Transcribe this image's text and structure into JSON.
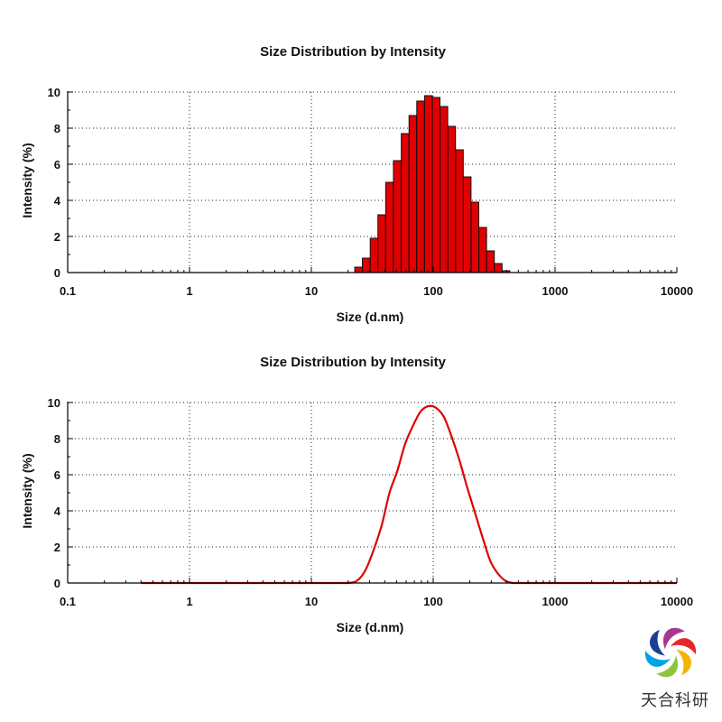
{
  "chart_data": [
    {
      "type": "bar",
      "title": "Size Distribution by Intensity",
      "xlabel": "Size (d.nm)",
      "ylabel": "Intensity (%)",
      "xscale": "log",
      "xlim": [
        0.1,
        10000
      ],
      "ylim": [
        0,
        10
      ],
      "x_ticks": [
        "0.1",
        "1",
        "10",
        "100",
        "1000",
        "10000"
      ],
      "y_ticks": [
        "0",
        "2",
        "4",
        "6",
        "8",
        "10"
      ],
      "grid": true,
      "bar_color": "#e00000",
      "x": [
        24.4,
        28.2,
        32.7,
        37.8,
        43.8,
        50.7,
        58.8,
        68.1,
        78.8,
        91.3,
        105.7,
        122.4,
        141.8,
        164.2,
        190.1,
        220.2,
        255.0,
        295.3,
        342.0,
        396.1,
        458.7
      ],
      "values": [
        0.3,
        0.8,
        1.9,
        3.2,
        5.0,
        6.2,
        7.7,
        8.7,
        9.5,
        9.8,
        9.7,
        9.2,
        8.1,
        6.8,
        5.3,
        3.9,
        2.5,
        1.2,
        0.5,
        0.1,
        0.0
      ]
    },
    {
      "type": "line",
      "title": "Size Distribution by Intensity",
      "xlabel": "Size (d.nm)",
      "ylabel": "Intensity (%)",
      "xscale": "log",
      "xlim": [
        0.1,
        10000
      ],
      "ylim": [
        0,
        10
      ],
      "x_ticks": [
        "0.1",
        "1",
        "10",
        "100",
        "1000",
        "10000"
      ],
      "y_ticks": [
        "0",
        "2",
        "4",
        "6",
        "8",
        "10"
      ],
      "grid": true,
      "line_color": "#e00000",
      "x": [
        0.4,
        1,
        5,
        10,
        20,
        24.4,
        28.2,
        32.7,
        37.8,
        43.8,
        50.7,
        58.8,
        68.1,
        78.8,
        91.3,
        105.7,
        122.4,
        141.8,
        164.2,
        190.1,
        220.2,
        255.0,
        295.3,
        342.0,
        396.1,
        458.7,
        530,
        1000,
        5000,
        10000
      ],
      "values": [
        0,
        0,
        0,
        0,
        0,
        0.2,
        0.8,
        1.9,
        3.2,
        5.0,
        6.2,
        7.7,
        8.7,
        9.5,
        9.8,
        9.7,
        9.2,
        8.1,
        6.8,
        5.3,
        3.9,
        2.5,
        1.2,
        0.5,
        0.1,
        0.0,
        0,
        0,
        0,
        0
      ]
    }
  ],
  "logo": {
    "text": "天合科研"
  }
}
